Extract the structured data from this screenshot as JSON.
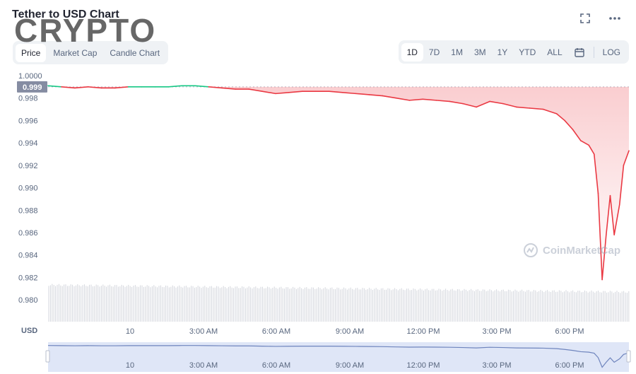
{
  "title": "Tether to USD Chart",
  "watermark_text": "CRYPTO",
  "brand_watermark": "CoinMarketCap",
  "tabs": [
    "Price",
    "Market Cap",
    "Candle Chart"
  ],
  "active_tab": "Price",
  "ranges": [
    "1D",
    "7D",
    "1M",
    "3M",
    "1Y",
    "YTD",
    "ALL"
  ],
  "active_range": "1D",
  "log_label": "LOG",
  "icons": {
    "fullscreen": "fullscreen-icon",
    "more": "more-icon",
    "calendar": "calendar-icon"
  },
  "colors": {
    "up": "#16c784",
    "down": "#ea3943",
    "volume": "#d3d6dc",
    "navigator_fill": "#dfe6f7",
    "navigator_line": "#6e84bd"
  },
  "chart_data": {
    "type": "line",
    "title": "Tether to USD Chart",
    "ylabel": "USD",
    "ylim": [
      0.979,
      1.0
    ],
    "y_ticks": [
      "1.0000",
      "0.998",
      "0.996",
      "0.994",
      "0.992",
      "0.990",
      "0.988",
      "0.986",
      "0.984",
      "0.982",
      "0.980"
    ],
    "x_ticks": [
      "10",
      "3:00 AM",
      "6:00 AM",
      "9:00 AM",
      "12:00 PM",
      "3:00 PM",
      "6:00 PM"
    ],
    "reference_price": "0.999",
    "grid": false,
    "series": [
      {
        "x": [
          -1.5,
          -1,
          -0.5,
          0,
          0.5,
          1,
          1.5,
          2,
          2.5,
          3,
          3.5,
          4,
          4.5,
          5,
          5.5,
          6,
          6.5,
          7,
          7.5,
          8,
          8.5,
          9,
          9.5,
          10,
          10.5,
          11,
          11.5,
          12,
          12.5,
          13,
          13.5,
          14,
          14.5,
          15,
          15.5,
          16,
          16.5,
          17,
          17.5,
          17.8,
          18.1,
          18.4,
          18.7,
          18.9,
          19.05,
          19.2,
          19.35,
          19.5,
          19.65,
          19.85,
          20,
          20.2
        ],
        "y": [
          0.9991,
          0.999,
          0.9989,
          0.999,
          0.9989,
          0.9989,
          0.999,
          0.999,
          0.999,
          0.999,
          0.9991,
          0.9991,
          0.999,
          0.9989,
          0.9988,
          0.9988,
          0.9986,
          0.9984,
          0.9985,
          0.9986,
          0.9986,
          0.9986,
          0.9985,
          0.9984,
          0.9983,
          0.9982,
          0.998,
          0.9978,
          0.9979,
          0.9978,
          0.9977,
          0.9975,
          0.9972,
          0.9977,
          0.9975,
          0.9972,
          0.9971,
          0.997,
          0.9966,
          0.996,
          0.9952,
          0.9942,
          0.9938,
          0.993,
          0.9895,
          0.9818,
          0.9858,
          0.9893,
          0.9858,
          0.9885,
          0.992,
          0.9933
        ]
      }
    ],
    "volume_note": "volume bars along bottom"
  }
}
